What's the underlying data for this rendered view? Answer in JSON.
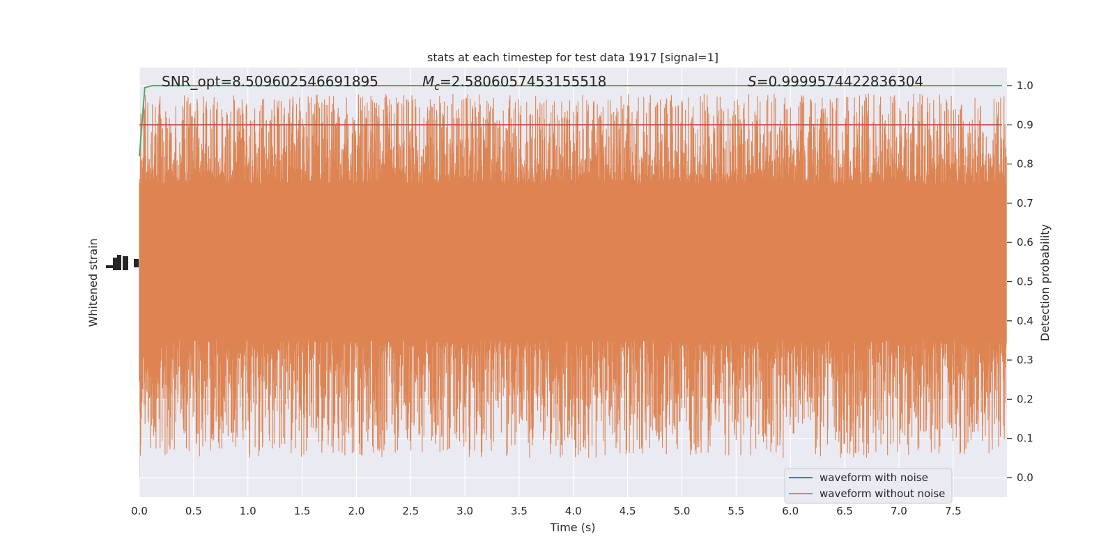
{
  "chart_data": {
    "type": "line",
    "title": "stats at each timestep for test data 1917 [signal=1]",
    "xlabel": "Time (s)",
    "ylabel_left": "Whitened strain",
    "ylabel_right": "Detection probability",
    "xlim": [
      0.0,
      8.0
    ],
    "ylim_right": [
      -0.05,
      1.05
    ],
    "x_ticks": [
      "0.0",
      "0.5",
      "1.0",
      "1.5",
      "2.0",
      "2.5",
      "3.0",
      "3.5",
      "4.0",
      "4.5",
      "5.0",
      "5.5",
      "6.0",
      "6.5",
      "7.0",
      "7.5"
    ],
    "y_ticks_right": [
      "0.0",
      "0.1",
      "0.2",
      "0.3",
      "0.4",
      "0.5",
      "0.6",
      "0.7",
      "0.8",
      "0.9",
      "1.0"
    ],
    "grid": true,
    "legend_position": "lower-right",
    "annotations": {
      "snr": "SNR_opt=8.509602546691895",
      "mc_symbol": "M",
      "mc_sub": "c",
      "mc_value": "=2.5806057453155518",
      "s_symbol": "S",
      "s_value": "=0.9999574422836304"
    },
    "series": [
      {
        "name": "waveform with noise",
        "color": "#4c72b0",
        "description_values": "near-zero strain, hidden under noise-free trace"
      },
      {
        "name": "waveform without noise",
        "color": "#dd8452",
        "band_center": 0.55,
        "band_core": [
          0.35,
          0.75
        ],
        "band_extremes": [
          0.05,
          0.98
        ]
      },
      {
        "color": "#55a868",
        "x": [
          0.0,
          0.05,
          0.12,
          0.2,
          1.0,
          2.0,
          3.0,
          4.0,
          5.0,
          6.0,
          7.0,
          7.95
        ],
        "y": [
          0.82,
          0.995,
          1.0,
          1.0,
          1.0,
          1.0,
          1.0,
          1.0,
          1.0,
          1.0,
          1.0,
          1.0
        ]
      },
      {
        "color": "#c44e52",
        "x": [
          0.0,
          7.95
        ],
        "y": [
          0.9,
          0.9
        ]
      }
    ]
  },
  "colors": {
    "plot_bg": "#eaeaf2",
    "grid": "#ffffff",
    "noise_free": "#dd8452",
    "with_noise": "#4c72b0",
    "probability": "#55a868",
    "threshold": "#c44e52"
  }
}
